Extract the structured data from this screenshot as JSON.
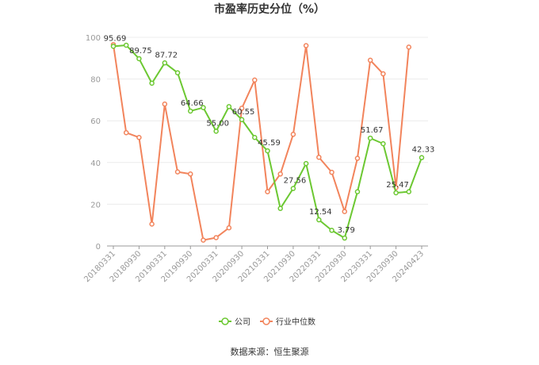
{
  "chart_data": {
    "type": "line",
    "title": "市盈率历史分位（%）",
    "source": "数据来源：恒生聚源",
    "x": [
      "20180331",
      "20180630",
      "20180930",
      "20181231",
      "20190331",
      "20190630",
      "20190930",
      "20191231",
      "20200331",
      "20200630",
      "20200930",
      "20201231",
      "20210331",
      "20210630",
      "20210930",
      "20211231",
      "20220331",
      "20220630",
      "20220930",
      "20221231",
      "20230331",
      "20230630",
      "20230930",
      "20231231",
      "20240423"
    ],
    "xtick_labels": [
      "20180331",
      "20180930",
      "20190331",
      "20190930",
      "20200331",
      "20200930",
      "20210331",
      "20210930",
      "20220331",
      "20220930",
      "20230331",
      "20230930",
      "20240423"
    ],
    "ylim": [
      0,
      100
    ],
    "yticks": [
      0,
      20,
      40,
      60,
      80,
      100
    ],
    "grid": true,
    "legend_position": "bottom",
    "series": [
      {
        "name": "公司",
        "color": "#6cc832",
        "values": [
          95.69,
          96.2,
          89.75,
          78.0,
          87.72,
          83.0,
          64.66,
          66.3,
          55.0,
          66.8,
          60.55,
          52.0,
          45.59,
          18.0,
          27.56,
          39.5,
          12.54,
          7.5,
          3.79,
          26.0,
          51.67,
          49.0,
          25.47,
          26.0,
          42.33
        ],
        "labels": [
          "95.69",
          "",
          "89.75",
          "",
          "87.72",
          "",
          "64.66",
          "",
          "55.00",
          "",
          "60.55",
          "",
          "45.59",
          "",
          "27.56",
          "",
          "12.54",
          "",
          "3.79",
          "",
          "51.67",
          "",
          "25.47",
          "",
          "42.33"
        ]
      },
      {
        "name": "行业中位数",
        "color": "#f2845c",
        "values": [
          96.5,
          54.3,
          52.0,
          10.5,
          68.0,
          35.5,
          34.5,
          2.8,
          4.0,
          8.7,
          66.0,
          79.5,
          26.0,
          34.5,
          53.5,
          96.0,
          42.5,
          35.3,
          16.5,
          42.0,
          89.0,
          82.5,
          28.0,
          95.3,
          null
        ]
      }
    ]
  }
}
